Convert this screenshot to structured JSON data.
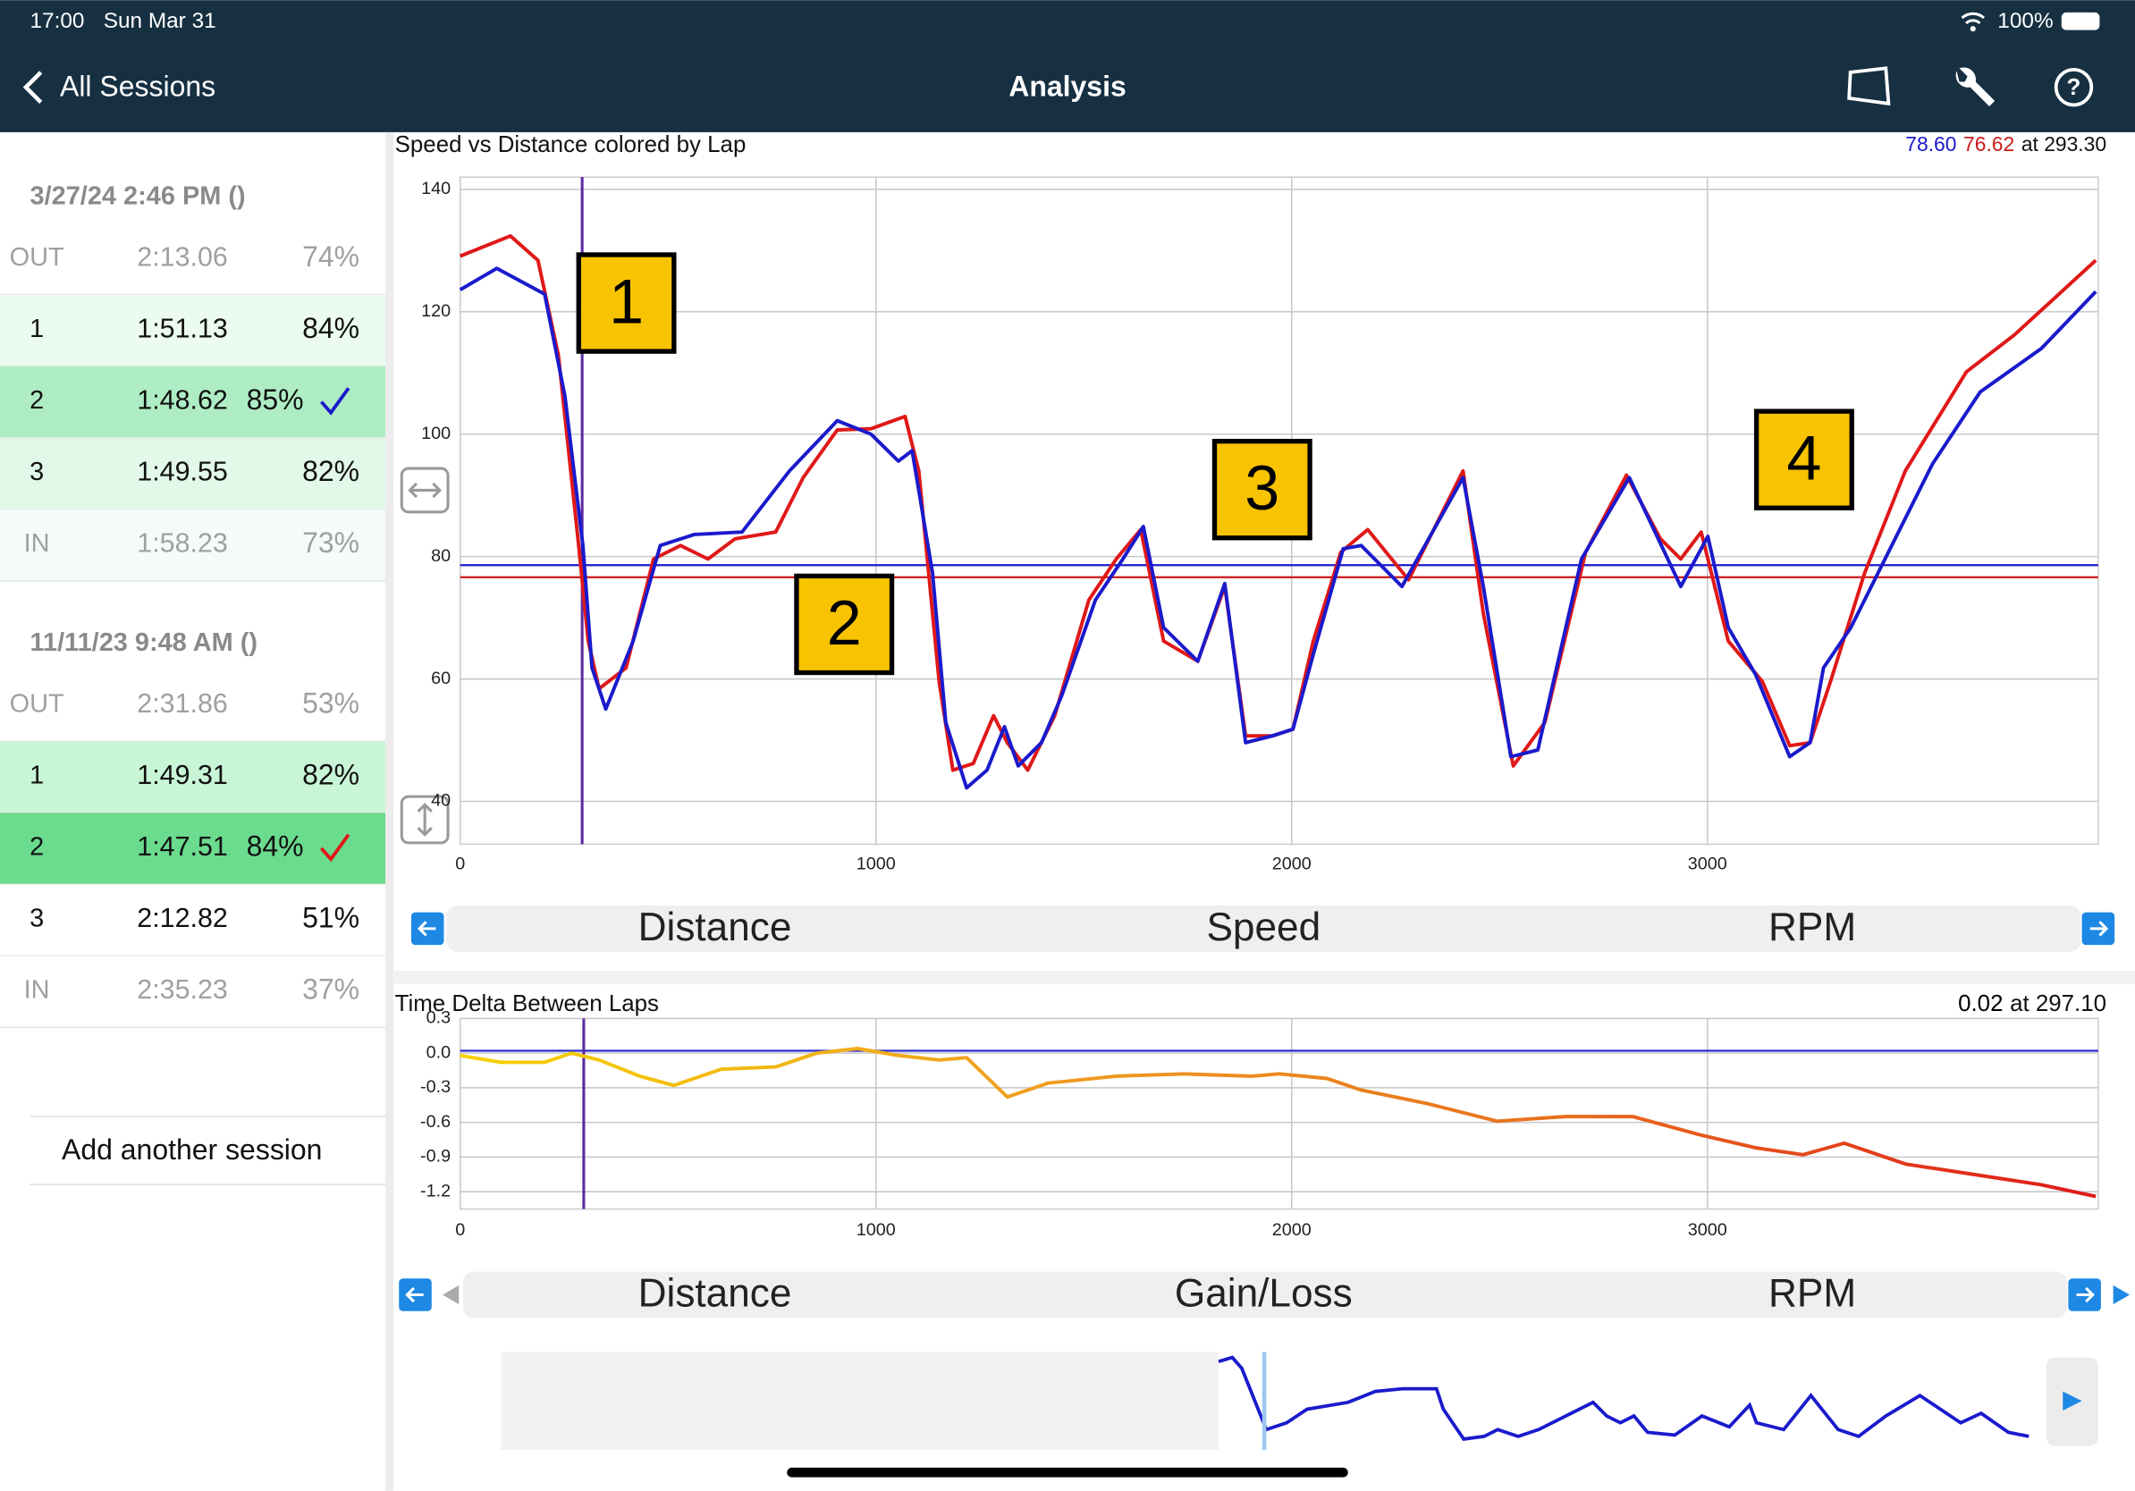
{
  "status_bar": {
    "time": "17:00",
    "date": "Sun Mar 31",
    "battery": "100%"
  },
  "nav": {
    "back": "All Sessions",
    "title": "Analysis"
  },
  "sessions": [
    {
      "title": "3/27/24 2:46 PM ()",
      "laps": [
        {
          "lap": "OUT",
          "time": "2:13.06",
          "pct": "74%",
          "muted": true,
          "color": "#ffffff"
        },
        {
          "lap": "1",
          "time": "1:51.13",
          "pct": "84%",
          "muted": false,
          "color": "#ebfbef"
        },
        {
          "lap": "2",
          "time": "1:48.62",
          "pct": "85%",
          "muted": false,
          "color": "#aeedc4",
          "check": "#1a1acc"
        },
        {
          "lap": "3",
          "time": "1:49.55",
          "pct": "82%",
          "muted": false,
          "color": "#e2f8e8"
        },
        {
          "lap": "IN",
          "time": "1:58.23",
          "pct": "73%",
          "muted": true,
          "color": "#f5fcf7"
        }
      ]
    },
    {
      "title": "11/11/23 9:48 AM ()",
      "laps": [
        {
          "lap": "OUT",
          "time": "2:31.86",
          "pct": "53%",
          "muted": true,
          "color": "#ffffff"
        },
        {
          "lap": "1",
          "time": "1:49.31",
          "pct": "82%",
          "muted": false,
          "color": "#c9f5d7"
        },
        {
          "lap": "2",
          "time": "1:47.51",
          "pct": "84%",
          "muted": false,
          "color": "#6bdb8e",
          "check": "#e01818"
        },
        {
          "lap": "3",
          "time": "2:12.82",
          "pct": "51%",
          "muted": false,
          "color": "#ffffff"
        },
        {
          "lap": "IN",
          "time": "2:35.23",
          "pct": "37%",
          "muted": true,
          "color": "#ffffff"
        }
      ]
    }
  ],
  "add_session": "Add another session",
  "selectors": [
    [
      "Distance",
      "Speed",
      "RPM"
    ],
    [
      "Distance",
      "Gain/Loss",
      "RPM"
    ]
  ],
  "chart_data": [
    {
      "type": "line",
      "title": "Speed vs Distance colored by Lap",
      "readout": [
        {
          "value": 78.6,
          "label": "78.60",
          "color": "#1a1acc"
        },
        {
          "value": 76.62,
          "label": "76.62",
          "color": "#cc1a1a"
        }
      ],
      "cursor": {
        "value": 293.3,
        "label": "at 293.30"
      },
      "annotations": [
        "1",
        "2",
        "3",
        "4"
      ],
      "xlim": [
        0,
        3940
      ],
      "xticks": [
        0,
        1000,
        2000,
        3000
      ],
      "ylim": [
        33,
        142
      ],
      "yticks": [
        40,
        60,
        80,
        100,
        120,
        140
      ],
      "grid": true,
      "series": [
        {
          "color": "#e01818",
          "x": [
            0,
            121,
            187,
            236,
            285,
            308,
            334,
            399,
            465,
            530,
            596,
            661,
            759,
            825,
            907,
            988,
            1070,
            1103,
            1152,
            1185,
            1234,
            1283,
            1316,
            1365,
            1430,
            1512,
            1578,
            1637,
            1692,
            1774,
            1839,
            1889,
            1954,
            2003,
            2052,
            2118,
            2183,
            2281,
            2412,
            2461,
            2533,
            2609,
            2707,
            2805,
            2887,
            2936,
            2985,
            3050,
            3132,
            3198,
            3247,
            3296,
            3378,
            3476,
            3623,
            3738,
            3934
          ],
          "values": [
            129.1,
            132.4,
            128.4,
            112.9,
            81.8,
            66.2,
            58.4,
            61.8,
            79.6,
            81.8,
            79.6,
            82.9,
            84.0,
            92.9,
            100.7,
            100.9,
            102.9,
            94.0,
            59.6,
            45.1,
            46.2,
            54.0,
            49.6,
            45.1,
            54.0,
            72.9,
            79.6,
            84.4,
            66.2,
            62.9,
            75.1,
            50.7,
            50.7,
            51.8,
            66.2,
            80.7,
            84.4,
            76.2,
            94.0,
            70.7,
            45.8,
            52.9,
            80.7,
            93.3,
            82.9,
            79.6,
            84.0,
            66.2,
            59.6,
            49.1,
            49.6,
            59.6,
            77.3,
            94.0,
            110.2,
            116.2,
            128.4
          ]
        },
        {
          "color": "#1a1acc",
          "x": [
            0,
            88,
            203,
            252,
            295,
            317,
            350,
            416,
            481,
            563,
            678,
            792,
            907,
            988,
            1054,
            1087,
            1136,
            1168,
            1218,
            1267,
            1309,
            1342,
            1398,
            1447,
            1528,
            1594,
            1643,
            1692,
            1774,
            1839,
            1889,
            1954,
            2003,
            2052,
            2124,
            2167,
            2265,
            2412,
            2461,
            2527,
            2592,
            2697,
            2812,
            2936,
            3001,
            3050,
            3116,
            3198,
            3247,
            3279,
            3345,
            3427,
            3541,
            3656,
            3803,
            3934
          ],
          "values": [
            123.6,
            127.1,
            122.9,
            106.2,
            81.8,
            61.8,
            55.1,
            66.2,
            81.8,
            83.6,
            84.0,
            94.0,
            102.2,
            100.0,
            95.6,
            97.3,
            77.3,
            52.9,
            42.2,
            45.1,
            52.2,
            45.8,
            49.6,
            57.3,
            72.9,
            79.6,
            84.9,
            68.4,
            62.9,
            75.6,
            49.6,
            50.7,
            51.8,
            64.0,
            81.3,
            81.8,
            75.1,
            92.9,
            75.1,
            47.3,
            48.4,
            79.6,
            92.9,
            75.1,
            83.3,
            68.4,
            60.7,
            47.3,
            49.6,
            61.8,
            68.4,
            79.6,
            95.1,
            106.9,
            114.0,
            123.3
          ]
        }
      ]
    },
    {
      "type": "line",
      "title": "Time Delta Between Laps",
      "readout": [
        {
          "value": 0.02,
          "label": "0.02",
          "color": "#000000"
        }
      ],
      "cursor": {
        "value": 297.1,
        "label": "at 297.10"
      },
      "reference_color": "#2a2ad0",
      "xlim": [
        0,
        3940
      ],
      "xticks": [
        0,
        1000,
        2000,
        3000
      ],
      "ylim": [
        -1.35,
        0.3
      ],
      "yticks": [
        -1.2,
        -0.9,
        -0.6,
        -0.3,
        {
          "value": 0,
          "label": "0.0"
        },
        0.3
      ],
      "grid": true,
      "series": [
        {
          "colors": [
            "#f6d200",
            "#f0a020",
            "#e8701c",
            "#e01818"
          ],
          "x": [
            0,
            98,
            203,
            268,
            334,
            432,
            514,
            628,
            759,
            857,
            956,
            1054,
            1152,
            1218,
            1316,
            1414,
            1578,
            1741,
            1905,
            1970,
            2085,
            2167,
            2330,
            2494,
            2658,
            2821,
            2985,
            3116,
            3230,
            3329,
            3476,
            3639,
            3803,
            3934
          ],
          "values": [
            -0.02,
            -0.08,
            -0.08,
            0.0,
            -0.06,
            -0.2,
            -0.28,
            -0.14,
            -0.12,
            0.0,
            0.04,
            -0.02,
            -0.06,
            -0.04,
            -0.38,
            -0.26,
            -0.2,
            -0.18,
            -0.2,
            -0.18,
            -0.22,
            -0.32,
            -0.44,
            -0.59,
            -0.55,
            -0.55,
            -0.71,
            -0.82,
            -0.88,
            -0.78,
            -0.96,
            -1.05,
            -1.14,
            -1.24
          ]
        }
      ]
    }
  ]
}
